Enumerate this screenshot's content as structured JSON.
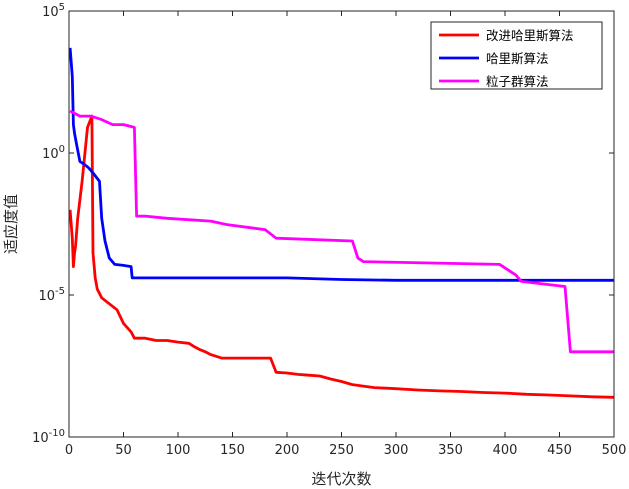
{
  "chart_data": {
    "type": "line",
    "xlabel": "迭代次数",
    "ylabel": "适应度值",
    "xlim": [
      0,
      500
    ],
    "ylim": [
      1e-10,
      100000.0
    ],
    "yscale": "log",
    "xticks": [
      0,
      50,
      100,
      150,
      200,
      250,
      300,
      350,
      400,
      450,
      500
    ],
    "yticks": [
      {
        "value": 100000.0,
        "base": "10",
        "exp": "5"
      },
      {
        "value": 1,
        "base": "10",
        "exp": "0"
      },
      {
        "value": 1e-05,
        "base": "10",
        "exp": "-5"
      },
      {
        "value": 1e-10,
        "base": "10",
        "exp": "-10"
      }
    ],
    "grid": false,
    "legend_position": "top-right",
    "series": [
      {
        "name": "改进哈里斯算法",
        "color": "#ff0000",
        "points": [
          [
            1,
            0.01
          ],
          [
            3,
            0.001
          ],
          [
            4,
            0.0001
          ],
          [
            5,
            0.0003
          ],
          [
            6,
            0.0005
          ],
          [
            8,
            0.005
          ],
          [
            12,
            0.1
          ],
          [
            17,
            8
          ],
          [
            21,
            20
          ],
          [
            22,
            0.0003
          ],
          [
            24,
            4e-05
          ],
          [
            26,
            1.6e-05
          ],
          [
            30,
            8e-06
          ],
          [
            44,
            3e-06
          ],
          [
            50,
            1e-06
          ],
          [
            57,
            5e-07
          ],
          [
            60,
            3e-07
          ],
          [
            70,
            3e-07
          ],
          [
            80,
            2.5e-07
          ],
          [
            90,
            2.5e-07
          ],
          [
            100,
            2.2e-07
          ],
          [
            110,
            2e-07
          ],
          [
            115,
            1.5e-07
          ],
          [
            120,
            1.2e-07
          ],
          [
            125,
            1e-07
          ],
          [
            130,
            8e-08
          ],
          [
            140,
            6e-08
          ],
          [
            160,
            6e-08
          ],
          [
            185,
            6e-08
          ],
          [
            190,
            1.9e-08
          ],
          [
            200,
            1.8e-08
          ],
          [
            210,
            1.6e-08
          ],
          [
            220,
            1.5e-08
          ],
          [
            230,
            1.4e-08
          ],
          [
            240,
            1.1e-08
          ],
          [
            250,
            9e-09
          ],
          [
            260,
            7e-09
          ],
          [
            280,
            5.5e-09
          ],
          [
            300,
            5e-09
          ],
          [
            320,
            4.5e-09
          ],
          [
            340,
            4.2e-09
          ],
          [
            360,
            4e-09
          ],
          [
            380,
            3.7e-09
          ],
          [
            400,
            3.5e-09
          ],
          [
            420,
            3.2e-09
          ],
          [
            440,
            3e-09
          ],
          [
            460,
            2.8e-09
          ],
          [
            480,
            2.6e-09
          ],
          [
            500,
            2.5e-09
          ]
        ]
      },
      {
        "name": "哈里斯算法",
        "color": "#0000ff",
        "points": [
          [
            1,
            5000.0
          ],
          [
            3,
            500.0
          ],
          [
            4,
            10
          ],
          [
            5,
            5
          ],
          [
            7,
            2
          ],
          [
            10,
            0.5
          ],
          [
            14,
            0.4
          ],
          [
            18,
            0.3
          ],
          [
            22,
            0.2
          ],
          [
            28,
            0.1
          ],
          [
            30,
            0.005
          ],
          [
            33,
            0.0008
          ],
          [
            37,
            0.0002
          ],
          [
            42,
            0.00012
          ],
          [
            50,
            0.00011
          ],
          [
            57,
            0.0001
          ],
          [
            58,
            4e-05
          ],
          [
            100,
            4e-05
          ],
          [
            200,
            4e-05
          ],
          [
            250,
            3.5e-05
          ],
          [
            300,
            3.3e-05
          ],
          [
            400,
            3.3e-05
          ],
          [
            500,
            3.3e-05
          ]
        ]
      },
      {
        "name": "粒子群算法",
        "color": "#ff00ff",
        "points": [
          [
            1,
            30
          ],
          [
            10,
            20
          ],
          [
            20,
            20
          ],
          [
            30,
            15
          ],
          [
            40,
            10
          ],
          [
            50,
            10
          ],
          [
            60,
            8
          ],
          [
            62,
            0.006
          ],
          [
            70,
            0.006
          ],
          [
            90,
            0.005
          ],
          [
            130,
            0.004
          ],
          [
            145,
            0.003
          ],
          [
            180,
            0.002
          ],
          [
            190,
            0.001
          ],
          [
            260,
            0.0008
          ],
          [
            265,
            0.0002
          ],
          [
            270,
            0.00015
          ],
          [
            395,
            0.00012
          ],
          [
            410,
            5e-05
          ],
          [
            415,
            3e-05
          ],
          [
            455,
            2e-05
          ],
          [
            460,
            1e-07
          ],
          [
            500,
            1e-07
          ]
        ]
      }
    ]
  }
}
